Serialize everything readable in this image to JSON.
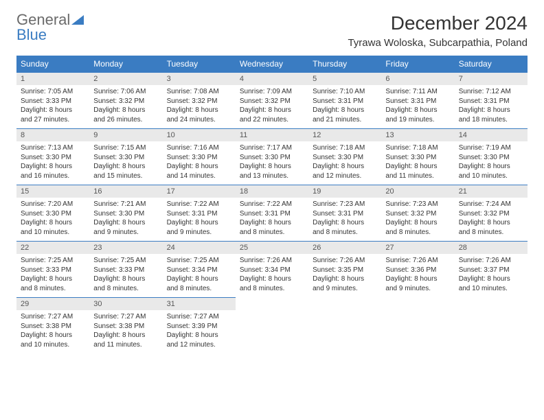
{
  "brand": {
    "part1": "General",
    "part2": "Blue"
  },
  "title": "December 2024",
  "location": "Tyrawa Woloska, Subcarpathia, Poland",
  "colors": {
    "header_bg": "#3a7cc2",
    "header_fg": "#ffffff",
    "daynum_bg": "#e9e9e9",
    "border": "#3a7cc2",
    "text": "#333333"
  },
  "weekdays": [
    "Sunday",
    "Monday",
    "Tuesday",
    "Wednesday",
    "Thursday",
    "Friday",
    "Saturday"
  ],
  "weeks": [
    [
      {
        "n": "1",
        "sr": "7:05 AM",
        "ss": "3:33 PM",
        "dl": "8 hours and 27 minutes."
      },
      {
        "n": "2",
        "sr": "7:06 AM",
        "ss": "3:32 PM",
        "dl": "8 hours and 26 minutes."
      },
      {
        "n": "3",
        "sr": "7:08 AM",
        "ss": "3:32 PM",
        "dl": "8 hours and 24 minutes."
      },
      {
        "n": "4",
        "sr": "7:09 AM",
        "ss": "3:32 PM",
        "dl": "8 hours and 22 minutes."
      },
      {
        "n": "5",
        "sr": "7:10 AM",
        "ss": "3:31 PM",
        "dl": "8 hours and 21 minutes."
      },
      {
        "n": "6",
        "sr": "7:11 AM",
        "ss": "3:31 PM",
        "dl": "8 hours and 19 minutes."
      },
      {
        "n": "7",
        "sr": "7:12 AM",
        "ss": "3:31 PM",
        "dl": "8 hours and 18 minutes."
      }
    ],
    [
      {
        "n": "8",
        "sr": "7:13 AM",
        "ss": "3:30 PM",
        "dl": "8 hours and 16 minutes."
      },
      {
        "n": "9",
        "sr": "7:15 AM",
        "ss": "3:30 PM",
        "dl": "8 hours and 15 minutes."
      },
      {
        "n": "10",
        "sr": "7:16 AM",
        "ss": "3:30 PM",
        "dl": "8 hours and 14 minutes."
      },
      {
        "n": "11",
        "sr": "7:17 AM",
        "ss": "3:30 PM",
        "dl": "8 hours and 13 minutes."
      },
      {
        "n": "12",
        "sr": "7:18 AM",
        "ss": "3:30 PM",
        "dl": "8 hours and 12 minutes."
      },
      {
        "n": "13",
        "sr": "7:18 AM",
        "ss": "3:30 PM",
        "dl": "8 hours and 11 minutes."
      },
      {
        "n": "14",
        "sr": "7:19 AM",
        "ss": "3:30 PM",
        "dl": "8 hours and 10 minutes."
      }
    ],
    [
      {
        "n": "15",
        "sr": "7:20 AM",
        "ss": "3:30 PM",
        "dl": "8 hours and 10 minutes."
      },
      {
        "n": "16",
        "sr": "7:21 AM",
        "ss": "3:30 PM",
        "dl": "8 hours and 9 minutes."
      },
      {
        "n": "17",
        "sr": "7:22 AM",
        "ss": "3:31 PM",
        "dl": "8 hours and 9 minutes."
      },
      {
        "n": "18",
        "sr": "7:22 AM",
        "ss": "3:31 PM",
        "dl": "8 hours and 8 minutes."
      },
      {
        "n": "19",
        "sr": "7:23 AM",
        "ss": "3:31 PM",
        "dl": "8 hours and 8 minutes."
      },
      {
        "n": "20",
        "sr": "7:23 AM",
        "ss": "3:32 PM",
        "dl": "8 hours and 8 minutes."
      },
      {
        "n": "21",
        "sr": "7:24 AM",
        "ss": "3:32 PM",
        "dl": "8 hours and 8 minutes."
      }
    ],
    [
      {
        "n": "22",
        "sr": "7:25 AM",
        "ss": "3:33 PM",
        "dl": "8 hours and 8 minutes."
      },
      {
        "n": "23",
        "sr": "7:25 AM",
        "ss": "3:33 PM",
        "dl": "8 hours and 8 minutes."
      },
      {
        "n": "24",
        "sr": "7:25 AM",
        "ss": "3:34 PM",
        "dl": "8 hours and 8 minutes."
      },
      {
        "n": "25",
        "sr": "7:26 AM",
        "ss": "3:34 PM",
        "dl": "8 hours and 8 minutes."
      },
      {
        "n": "26",
        "sr": "7:26 AM",
        "ss": "3:35 PM",
        "dl": "8 hours and 9 minutes."
      },
      {
        "n": "27",
        "sr": "7:26 AM",
        "ss": "3:36 PM",
        "dl": "8 hours and 9 minutes."
      },
      {
        "n": "28",
        "sr": "7:26 AM",
        "ss": "3:37 PM",
        "dl": "8 hours and 10 minutes."
      }
    ],
    [
      {
        "n": "29",
        "sr": "7:27 AM",
        "ss": "3:38 PM",
        "dl": "8 hours and 10 minutes."
      },
      {
        "n": "30",
        "sr": "7:27 AM",
        "ss": "3:38 PM",
        "dl": "8 hours and 11 minutes."
      },
      {
        "n": "31",
        "sr": "7:27 AM",
        "ss": "3:39 PM",
        "dl": "8 hours and 12 minutes."
      },
      null,
      null,
      null,
      null
    ]
  ],
  "labels": {
    "sunrise": "Sunrise:",
    "sunset": "Sunset:",
    "daylight": "Daylight:"
  }
}
